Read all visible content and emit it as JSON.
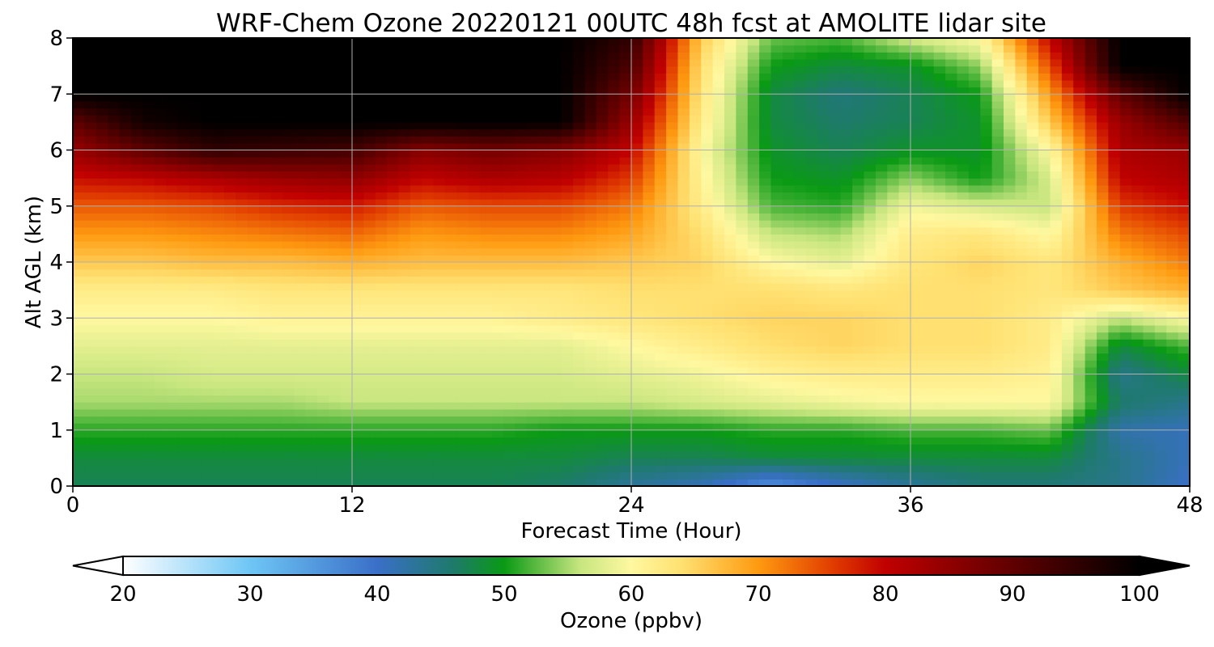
{
  "chart_data": {
    "type": "heatmap",
    "title": "WRF-Chem Ozone  20220121 00UTC 48h fcst at AMOLITE lidar site",
    "xlabel": "Forecast Time (Hour)",
    "ylabel": "Alt AGL (km)",
    "xlim": [
      0,
      48
    ],
    "ylim": [
      0,
      8
    ],
    "x_ticks": [
      "0",
      "12",
      "24",
      "36",
      "48"
    ],
    "y_ticks": [
      "0",
      "1",
      "2",
      "3",
      "4",
      "5",
      "6",
      "7",
      "8"
    ],
    "grid": true,
    "x_hours": [
      0,
      3,
      6,
      9,
      12,
      15,
      18,
      21,
      24,
      27,
      30,
      33,
      36,
      39,
      42,
      45,
      48
    ],
    "z_km": [
      0,
      0.5,
      1,
      1.5,
      2,
      2.5,
      3,
      3.5,
      4,
      4.5,
      5,
      5.5,
      6,
      6.5,
      7,
      7.5,
      8
    ],
    "ozone_ppbv": [
      [
        47,
        47,
        47,
        47,
        47,
        47,
        47,
        46,
        43,
        41,
        36,
        40,
        43,
        45,
        45,
        44,
        40
      ],
      [
        48,
        48,
        48,
        48,
        48,
        48,
        48,
        48,
        47,
        47,
        48,
        48,
        48,
        48,
        48,
        44,
        41
      ],
      [
        51,
        51,
        51,
        51,
        51,
        51,
        51,
        50,
        50,
        50,
        51,
        51,
        52,
        52,
        53,
        42,
        41
      ],
      [
        55,
        55,
        55,
        55,
        56,
        56,
        56,
        56,
        56,
        57,
        58,
        59,
        60,
        60,
        60,
        46,
        44
      ],
      [
        56,
        56,
        57,
        57,
        57,
        57,
        57,
        57,
        58,
        59,
        61,
        62,
        62,
        62,
        61,
        44,
        48
      ],
      [
        58,
        58,
        58,
        58,
        58,
        58,
        58,
        58,
        60,
        62,
        64,
        65,
        64,
        64,
        62,
        48,
        52
      ],
      [
        60,
        60,
        60,
        61,
        61,
        61,
        61,
        62,
        63,
        64,
        65,
        65,
        64,
        64,
        62,
        56,
        60
      ],
      [
        62,
        62,
        62,
        63,
        63,
        63,
        63,
        63,
        64,
        64,
        64,
        63,
        64,
        64,
        63,
        66,
        68
      ],
      [
        66,
        66,
        67,
        67,
        68,
        67,
        67,
        67,
        66,
        65,
        60,
        58,
        63,
        65,
        63,
        68,
        72
      ],
      [
        70,
        70,
        71,
        72,
        73,
        70,
        71,
        71,
        69,
        64,
        56,
        55,
        62,
        63,
        60,
        72,
        75
      ],
      [
        74,
        74,
        75,
        77,
        78,
        74,
        75,
        75,
        72,
        62,
        52,
        51,
        59,
        57,
        56,
        76,
        79
      ],
      [
        79,
        80,
        82,
        84,
        85,
        80,
        82,
        81,
        76,
        61,
        50,
        49,
        54,
        50,
        57,
        80,
        82
      ],
      [
        84,
        90,
        95,
        94,
        93,
        86,
        88,
        86,
        80,
        60,
        49,
        47,
        49,
        49,
        60,
        82,
        84
      ],
      [
        90,
        98,
        100,
        100,
        100,
        100,
        100,
        100,
        84,
        62,
        48,
        46,
        47,
        49,
        66,
        84,
        92
      ],
      [
        100,
        100,
        100,
        100,
        100,
        100,
        100,
        100,
        88,
        63,
        48,
        45,
        47,
        50,
        70,
        90,
        100
      ],
      [
        100,
        100,
        100,
        100,
        100,
        100,
        100,
        100,
        92,
        64,
        50,
        48,
        49,
        54,
        75,
        100,
        100
      ],
      [
        100,
        100,
        100,
        100,
        100,
        100,
        100,
        100,
        95,
        66,
        53,
        52,
        57,
        60,
        80,
        100,
        100
      ]
    ],
    "colorbar": {
      "label": "Ozone  (ppbv)",
      "min": 20,
      "max": 100,
      "ticks": [
        "20",
        "30",
        "40",
        "50",
        "60",
        "70",
        "80",
        "90",
        "100"
      ],
      "extend": "both",
      "colors": [
        "#ffffff",
        "#6ec6f5",
        "#3a6fc8",
        "#1e7a6a",
        "#0a9a14",
        "#c8e680",
        "#fff8a0",
        "#ffe070",
        "#ff9a10",
        "#e03a00",
        "#c00000",
        "#600000",
        "#000000"
      ],
      "stops": [
        20,
        30,
        40,
        46,
        50,
        56,
        60,
        64,
        70,
        76,
        80,
        90,
        100
      ]
    }
  }
}
